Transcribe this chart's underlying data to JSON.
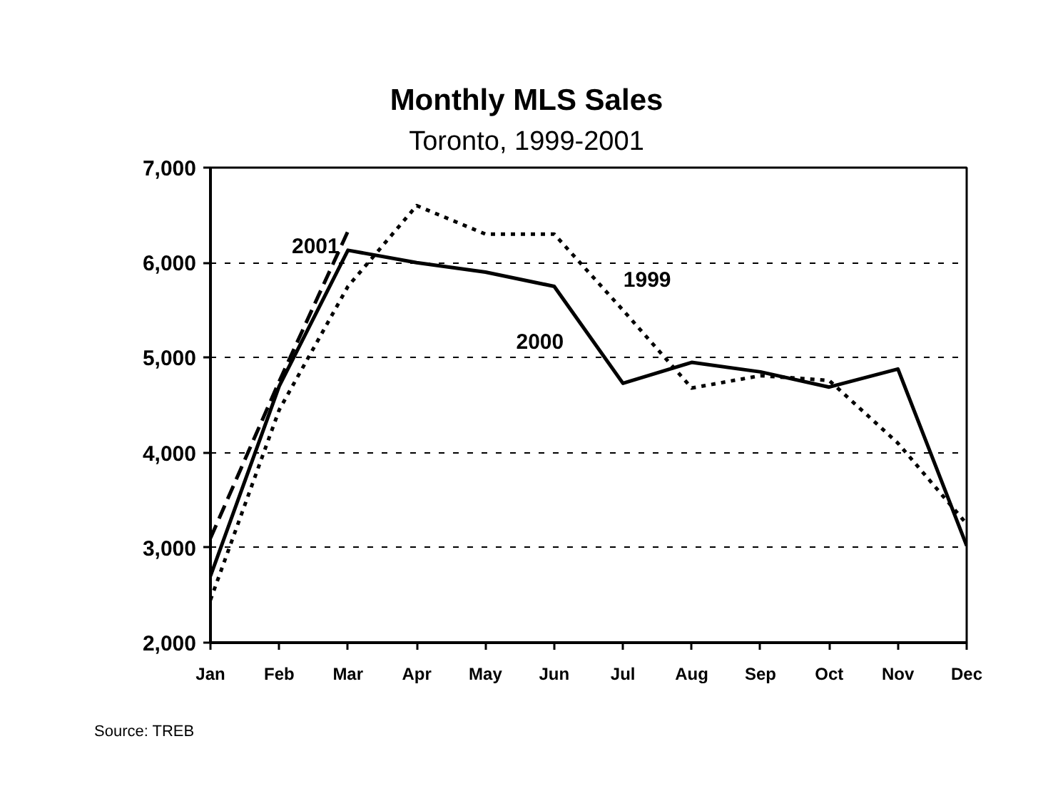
{
  "chart_data": {
    "type": "line",
    "title": "Monthly MLS Sales",
    "subtitle": "Toronto, 1999-2001",
    "categories": [
      "Jan",
      "Feb",
      "Mar",
      "Apr",
      "May",
      "Jun",
      "Jul",
      "Aug",
      "Sep",
      "Oct",
      "Nov",
      "Dec"
    ],
    "series": [
      {
        "name": "1999",
        "color": "#000000",
        "line_style": "dotted",
        "values": [
          2450,
          4450,
          5750,
          6600,
          6300,
          6300,
          5500,
          4680,
          4810,
          4760,
          4100,
          3250
        ]
      },
      {
        "name": "2000",
        "color": "#000000",
        "line_style": "solid",
        "values": [
          2700,
          4700,
          6130,
          6000,
          5900,
          5750,
          4730,
          4950,
          4850,
          4690,
          4880,
          3020
        ]
      },
      {
        "name": "2001",
        "color": "#000000",
        "line_style": "dashed",
        "values": [
          3100,
          4750,
          6330,
          null,
          null,
          null,
          null,
          null,
          null,
          null,
          null,
          null
        ]
      }
    ],
    "ylim": [
      2000,
      7000
    ],
    "yticks": [
      {
        "value": 2000,
        "label": "2,000"
      },
      {
        "value": 3000,
        "label": "3,000"
      },
      {
        "value": 4000,
        "label": "4,000"
      },
      {
        "value": 5000,
        "label": "5,000"
      },
      {
        "value": 6000,
        "label": "6,000"
      },
      {
        "value": 7000,
        "label": "7,000"
      }
    ],
    "grid": "y",
    "annotations": [
      "Source: TREB"
    ]
  }
}
